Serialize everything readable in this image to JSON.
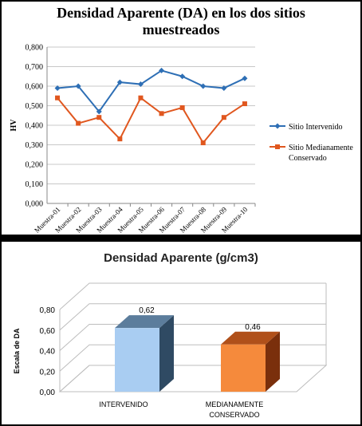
{
  "charts": {
    "top": {
      "title_line1": "Densidad Aparente (DA) en los dos sitios",
      "title_line2": "muestreados"
    },
    "bottom": {
      "title": "Densidad Aparente (g/cm3)"
    }
  },
  "chart_data": [
    {
      "type": "line",
      "title": "Densidad Aparente (DA) en los dos sitios muestreados",
      "xlabel": "",
      "ylabel": "HV",
      "categories": [
        "Muestra-01",
        "Muestra-02",
        "Muestra-03",
        "Muestra-04",
        "Muestra-05",
        "Muestra-06",
        "Muestra-07",
        "Muestra-08",
        "Muestra-09",
        "Muestra-10"
      ],
      "ylim": [
        0,
        0.8
      ],
      "yticks": [
        "0,000",
        "0,100",
        "0,200",
        "0,300",
        "0,400",
        "0,500",
        "0,600",
        "0,700",
        "0,800"
      ],
      "grid": true,
      "legend": "right",
      "series": [
        {
          "name": "Sitio Intervenido",
          "color": "#2e6fb5",
          "marker": "diamond",
          "values": [
            0.59,
            0.6,
            0.47,
            0.62,
            0.61,
            0.68,
            0.65,
            0.6,
            0.59,
            0.64
          ]
        },
        {
          "name": "Sitio Medianamente Conservado",
          "color": "#e0571f",
          "marker": "square",
          "values": [
            0.54,
            0.41,
            0.44,
            0.33,
            0.54,
            0.46,
            0.49,
            0.31,
            0.44,
            0.51
          ]
        }
      ]
    },
    {
      "type": "bar",
      "title": "Densidad Aparente (g/cm3)",
      "xlabel": "",
      "ylabel": "Escala de DA",
      "categories": [
        "INTERVENIDO",
        "MEDIANAMENTE CONSERVADO"
      ],
      "values": [
        0.62,
        0.46
      ],
      "data_labels": [
        "0,62",
        "0,46"
      ],
      "ylim": [
        0,
        0.8
      ],
      "yticks": [
        "0,00",
        "0,20",
        "0,40",
        "0,60",
        "0,80"
      ],
      "grid": true,
      "colors": [
        "#a9cdf2",
        "#f58a3c"
      ]
    }
  ]
}
